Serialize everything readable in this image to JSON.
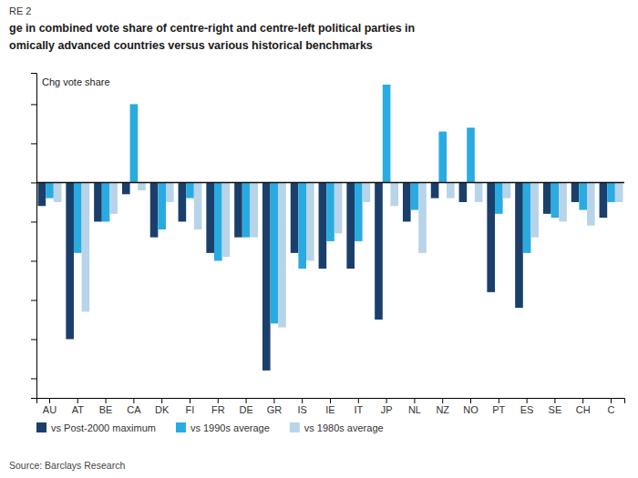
{
  "chart_data": {
    "type": "bar",
    "title": [
      "RE 2",
      "ge in combined vote share of centre-right and centre-left political parties in",
      "omically advanced countries versus various historical benchmarks"
    ],
    "ylabel": "Chg vote share",
    "source": "Source: Barclays Research",
    "categories": [
      "AU",
      "AT",
      "BE",
      "CA",
      "DK",
      "FI",
      "FR",
      "DE",
      "GR",
      "IS",
      "IE",
      "IT",
      "JP",
      "NL",
      "NZ",
      "NO",
      "PT",
      "ES",
      "SE",
      "CH",
      "C"
    ],
    "series": [
      {
        "name": "vs Post-2000 maximum",
        "color": "#1b3f6b",
        "values": [
          -6,
          -40,
          -10,
          -3,
          -14,
          -10,
          -18,
          -14,
          -48,
          -18,
          -22,
          -22,
          -35,
          -10,
          -4,
          -5,
          -28,
          -32,
          -8,
          -5,
          -9
        ]
      },
      {
        "name": "vs 1990s average",
        "color": "#29abe2",
        "values": [
          -4,
          -18,
          -10,
          20,
          -12,
          -4,
          -20,
          -14,
          -36,
          -22,
          -15,
          -15,
          25,
          -7,
          13,
          14,
          -8,
          -18,
          -9,
          -7,
          -5
        ]
      },
      {
        "name": "vs 1980s average",
        "color": "#b8d4e8",
        "values": [
          -5,
          -33,
          -8,
          -2,
          -5,
          -12,
          -19,
          -14,
          -37,
          -20,
          -13,
          -5,
          -6,
          -18,
          -4,
          -5,
          -4,
          -14,
          -10,
          -11,
          -5
        ]
      }
    ],
    "ylim": [
      -55,
      28
    ],
    "yticks": [
      -50,
      -40,
      -30,
      -20,
      -10,
      0,
      10,
      20
    ],
    "tick_labels": "x",
    "grid": false,
    "legend": "bottom"
  }
}
